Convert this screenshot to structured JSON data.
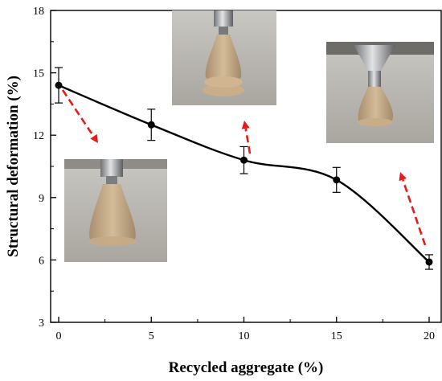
{
  "chart_data": {
    "type": "scatter",
    "title": "",
    "xlabel": "Recycled aggregate (%)",
    "ylabel": "Structural deformation (%)",
    "xlim": [
      0,
      20
    ],
    "ylim": [
      3,
      18
    ],
    "xticks": [
      "0",
      "5",
      "10",
      "15",
      "20"
    ],
    "yticks": [
      "3",
      "6",
      "9",
      "12",
      "15",
      "18"
    ],
    "grid": false,
    "series": [
      {
        "x": [
          0,
          5,
          10,
          15,
          20
        ],
        "y": [
          14.4,
          12.5,
          10.8,
          9.85,
          5.9
        ],
        "error": [
          0.85,
          0.75,
          0.65,
          0.6,
          0.35
        ],
        "marker": "circle",
        "line": "smooth",
        "color": "#000000"
      }
    ],
    "annotations": [
      {
        "type": "photo",
        "content": "3D-printed recycled-aggregate concrete specimen under nozzle",
        "associated_x": 0
      },
      {
        "type": "photo",
        "content": "3D-printed recycled-aggregate concrete specimen under nozzle",
        "associated_x": 10
      },
      {
        "type": "photo",
        "content": "3D-printed recycled-aggregate concrete specimen under nozzle",
        "associated_x": 20
      }
    ],
    "arrow_color": "#e8191b"
  }
}
